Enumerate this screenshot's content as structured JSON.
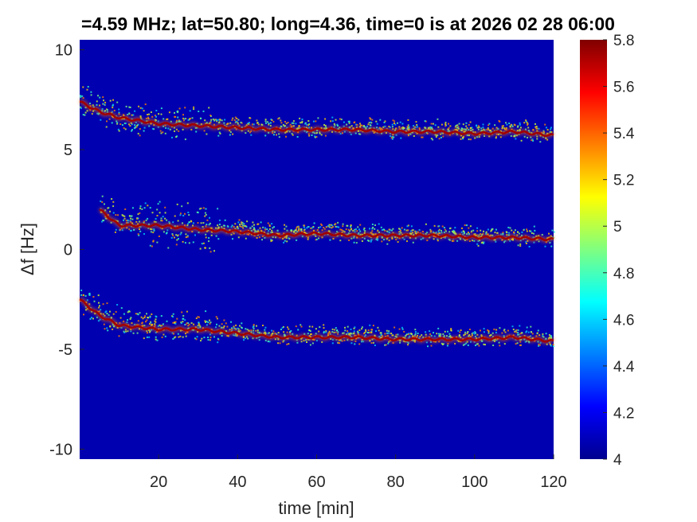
{
  "chart_data": {
    "type": "heatmap",
    "title": "=4.59 MHz;  lat=50.80; long=4.36, time=0 is at 2026 02 28 06:00",
    "xlabel": "time [min]",
    "ylabel": "Δf [Hz]",
    "xlim": [
      0,
      120
    ],
    "ylim": [
      -10.5,
      10.5
    ],
    "xticks": [
      20,
      40,
      60,
      80,
      100,
      120
    ],
    "yticks": [
      10,
      5,
      0,
      -5,
      -10
    ],
    "colorbar": {
      "range": [
        4,
        5.8
      ],
      "ticks": [
        5.8,
        5.6,
        5.4,
        5.2,
        5,
        4.8,
        4.6,
        4.4,
        4.2,
        4
      ]
    },
    "colormap": "jet",
    "background_color": "#0000b0",
    "series": [
      {
        "x": [
          0,
          5,
          10,
          20,
          30,
          40,
          50,
          60,
          70,
          80,
          90,
          100,
          110,
          120
        ],
        "y": [
          7.4,
          6.9,
          6.6,
          6.3,
          6.2,
          6.1,
          6.0,
          6.0,
          6.0,
          5.9,
          5.9,
          5.8,
          5.9,
          5.7
        ]
      },
      {
        "x": [
          5,
          10,
          20,
          30,
          40,
          50,
          60,
          70,
          80,
          90,
          100,
          110,
          120
        ],
        "y": [
          2.0,
          1.2,
          1.2,
          1.0,
          0.9,
          0.7,
          0.8,
          0.7,
          0.7,
          0.7,
          0.6,
          0.6,
          0.5
        ]
      },
      {
        "x": [
          0,
          5,
          10,
          20,
          30,
          40,
          50,
          60,
          70,
          80,
          90,
          100,
          110,
          120
        ],
        "y": [
          -2.5,
          -3.3,
          -3.8,
          -4.0,
          -4.0,
          -4.2,
          -4.4,
          -4.4,
          -4.4,
          -4.5,
          -4.5,
          -4.5,
          -4.4,
          -4.6
        ]
      }
    ]
  }
}
